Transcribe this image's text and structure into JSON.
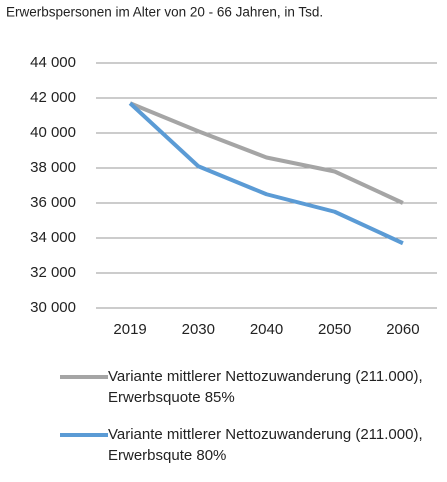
{
  "chart_data": {
    "type": "line",
    "title": "Erwerbspersonen im Alter von 20 - 66 Jahren, in Tsd.",
    "categories": [
      "2019",
      "2030",
      "2040",
      "2050",
      "2060"
    ],
    "series": [
      {
        "name": "Variante mittlerer Nettozuwanderung (211.000), Erwerbsquote 85%",
        "color": "#a5a5a5",
        "values": [
          41700,
          40100,
          38600,
          37800,
          36000
        ]
      },
      {
        "name": "Variante mittlerer Nettozuwanderung (211.000), Erwerbsqute 80%",
        "color": "#5b9bd5",
        "values": [
          41700,
          38100,
          36500,
          35500,
          33700
        ]
      }
    ],
    "ylim": [
      30000,
      44000
    ],
    "yticks": [
      {
        "value": 30000,
        "label": "30 000"
      },
      {
        "value": 32000,
        "label": "32 000"
      },
      {
        "value": 34000,
        "label": "34 000"
      },
      {
        "value": 36000,
        "label": "36 000"
      },
      {
        "value": 38000,
        "label": "38 000"
      },
      {
        "value": 40000,
        "label": "40 000"
      },
      {
        "value": 42000,
        "label": "42 000"
      },
      {
        "value": 44000,
        "label": "44 000"
      }
    ],
    "grid": true
  }
}
